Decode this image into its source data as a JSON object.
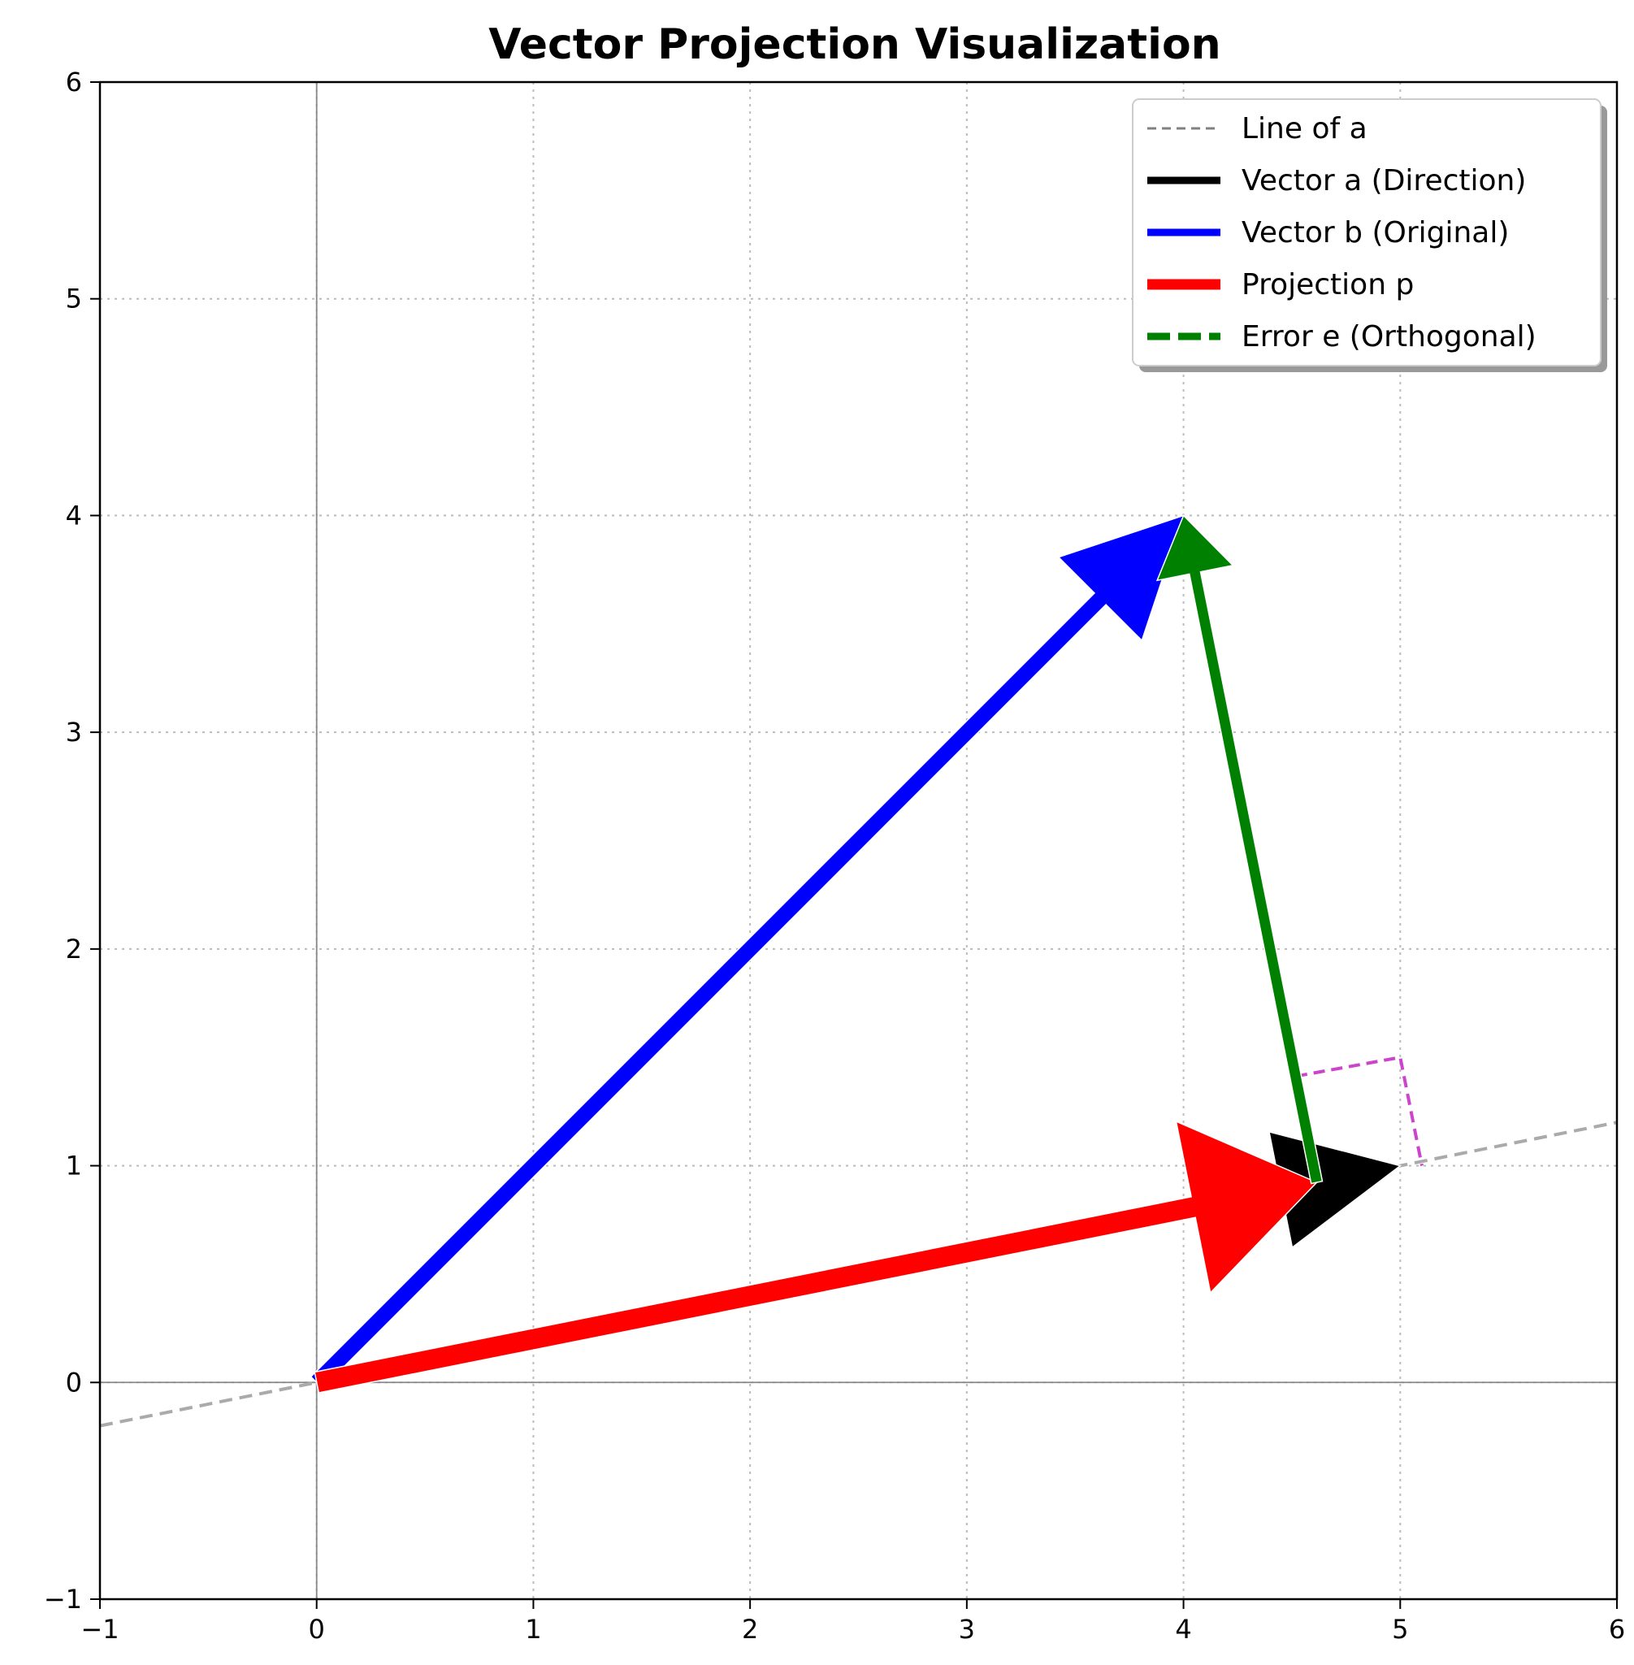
{
  "chart_data": {
    "type": "vector-plot",
    "title": "Vector Projection Visualization",
    "xlabel": "",
    "ylabel": "",
    "xlim": [
      -1,
      6
    ],
    "ylim": [
      -1,
      6
    ],
    "xticks": [
      "−1",
      "0",
      "1",
      "2",
      "3",
      "4",
      "5",
      "6"
    ],
    "yticks": [
      "−1",
      "0",
      "1",
      "2",
      "3",
      "4",
      "5",
      "6"
    ],
    "grid": true,
    "legend_position": "top-right",
    "vectors": [
      {
        "name": "Vector a (Direction)",
        "from": [
          0,
          0
        ],
        "to": [
          5,
          1
        ],
        "color": "#000000"
      },
      {
        "name": "Vector b (Original)",
        "from": [
          0,
          0
        ],
        "to": [
          4,
          4
        ],
        "color": "#0000ff"
      },
      {
        "name": "Projection p",
        "from": [
          0,
          0
        ],
        "to": [
          4.615,
          0.923
        ],
        "color": "#ff0000"
      },
      {
        "name": "Error e (Orthogonal)",
        "from": [
          4.615,
          0.923
        ],
        "to": [
          4,
          4
        ],
        "color": "#008000"
      }
    ],
    "line_of_a": {
      "name": "Line of a",
      "x": [
        -1,
        6
      ],
      "y": [
        -0.2,
        1.2
      ],
      "color": "#808080"
    },
    "right_angle_marker": {
      "points": [
        [
          4.519,
          1.413
        ],
        [
          5.0,
          1.5
        ],
        [
          5.1,
          1.0
        ]
      ],
      "color": "#cc44cc"
    },
    "legend": [
      {
        "label": "Line of a",
        "color": "#808080",
        "style": "dashed-thin"
      },
      {
        "label": "Vector a (Direction)",
        "color": "#000000",
        "style": "solid"
      },
      {
        "label": "Vector b (Original)",
        "color": "#0000ff",
        "style": "solid"
      },
      {
        "label": "Projection p",
        "color": "#ff0000",
        "style": "solid-thick"
      },
      {
        "label": "Error e (Orthogonal)",
        "color": "#008000",
        "style": "dashed-thick"
      }
    ]
  }
}
